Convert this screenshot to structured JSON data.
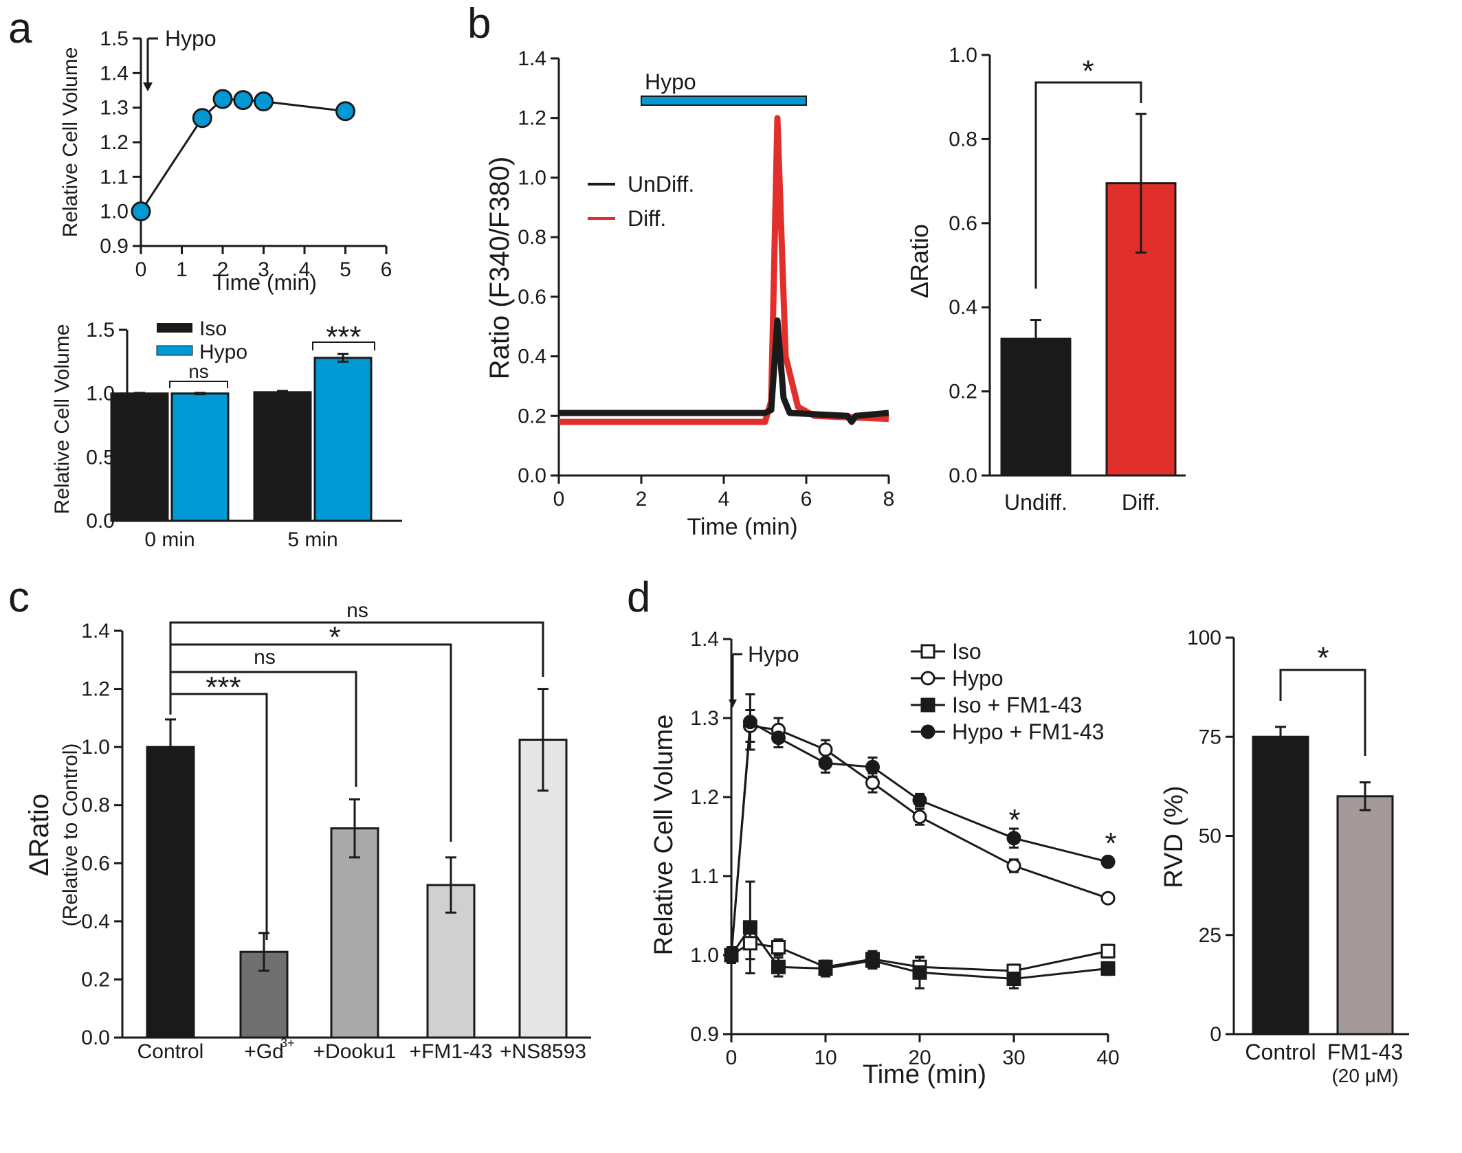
{
  "panels": {
    "a_letter": "a",
    "b_letter": "b",
    "c_letter": "c",
    "d_letter": "d"
  },
  "colors": {
    "black": "#1a1a1a",
    "blue": "#0099d4",
    "red": "#e1302b",
    "gd": "#707070",
    "dooku": "#a9a9a9",
    "fm": "#d0d0d0",
    "ns": "#e6e6e6",
    "fm_rvd": "#a39a99"
  },
  "chart_data": [
    {
      "id": "a_top",
      "type": "line",
      "xlabel": "Time (min)",
      "ylabel": "Relative Cell Volume",
      "xlim": [
        0,
        6
      ],
      "ylim": [
        0.9,
        1.5
      ],
      "xticks": [
        "0",
        "1",
        "2",
        "3",
        "4",
        "5",
        "6"
      ],
      "yticks": [
        "0.9",
        "1.0",
        "1.1",
        "1.2",
        "1.3",
        "1.4",
        "1.5"
      ],
      "annotation": "Hypo",
      "x": [
        0,
        1.5,
        2,
        2.5,
        3,
        5
      ],
      "y": [
        1.0,
        1.27,
        1.325,
        1.322,
        1.318,
        1.29
      ]
    },
    {
      "id": "a_bottom",
      "type": "bar",
      "ylabel": "Relative Cell Volume",
      "ylim": [
        0,
        1.5
      ],
      "yticks": [
        "0.0",
        "0.5",
        "1.0",
        "1.5"
      ],
      "categories": [
        "0 min",
        "5 min"
      ],
      "series": [
        {
          "name": "Iso",
          "values": [
            1.0,
            1.01
          ],
          "err": [
            0.005,
            0.01
          ]
        },
        {
          "name": "Hypo",
          "values": [
            1.0,
            1.28
          ],
          "err": [
            0.005,
            0.03
          ]
        }
      ],
      "significance": [
        "ns",
        "***"
      ]
    },
    {
      "id": "b_trace",
      "type": "line",
      "xlabel": "Time (min)",
      "ylabel": "Ratio (F340/F380)",
      "xlim": [
        0,
        8
      ],
      "ylim": [
        0,
        1.4
      ],
      "xticks": [
        "0",
        "2",
        "4",
        "6",
        "8"
      ],
      "yticks": [
        "0.0",
        "0.2",
        "0.4",
        "0.6",
        "0.8",
        "1.0",
        "1.2",
        "1.4"
      ],
      "annotation": "Hypo",
      "stimulus": [
        2,
        6
      ],
      "series": [
        {
          "name": "UnDiff.",
          "x": [
            0,
            5.0,
            5.15,
            5.3,
            5.45,
            5.6,
            7.0,
            7.1,
            7.2,
            8
          ],
          "y": [
            0.21,
            0.21,
            0.22,
            0.52,
            0.26,
            0.21,
            0.2,
            0.18,
            0.2,
            0.21
          ]
        },
        {
          "name": "Diff.",
          "x": [
            0,
            5.0,
            5.15,
            5.3,
            5.5,
            5.8,
            6.2,
            8
          ],
          "y": [
            0.18,
            0.18,
            0.25,
            1.2,
            0.4,
            0.23,
            0.2,
            0.19
          ]
        }
      ]
    },
    {
      "id": "b_bar",
      "type": "bar",
      "ylabel": "ΔRatio",
      "ylim": [
        0,
        1.0
      ],
      "yticks": [
        "0.0",
        "0.2",
        "0.4",
        "0.6",
        "0.8",
        "1.0"
      ],
      "categories": [
        "Undiff.",
        "Diff."
      ],
      "values": [
        0.325,
        0.695
      ],
      "err": [
        0.045,
        0.165
      ],
      "significance": "*"
    },
    {
      "id": "c_bar",
      "type": "bar",
      "ylabel": "ΔRatio",
      "ylabel2": "(Relative to Control)",
      "ylim": [
        0,
        1.4
      ],
      "yticks": [
        "0.0",
        "0.2",
        "0.4",
        "0.6",
        "0.8",
        "1.0",
        "1.2",
        "1.4"
      ],
      "categories": [
        "Control",
        "+Gd",
        "+Dooku1",
        "+FM1-43",
        "+NS8593"
      ],
      "superscript": "3+",
      "values": [
        1.0,
        0.295,
        0.72,
        0.525,
        1.025
      ],
      "err": [
        0.095,
        0.065,
        0.1,
        0.095,
        0.175
      ],
      "significance": [
        "***",
        "ns",
        "*",
        "ns"
      ]
    },
    {
      "id": "d_line",
      "type": "line",
      "xlabel": "Time (min)",
      "ylabel": "Relative Cell Volume",
      "xlim": [
        0,
        40
      ],
      "ylim": [
        0.9,
        1.4
      ],
      "xticks": [
        "0",
        "10",
        "20",
        "30",
        "40"
      ],
      "yticks": [
        "0.9",
        "1.0",
        "1.1",
        "1.2",
        "1.3",
        "1.4"
      ],
      "annotation": "Hypo",
      "x": [
        0,
        2,
        5,
        10,
        15,
        20,
        30,
        40
      ],
      "series": [
        {
          "name": "Iso",
          "legend": "Iso",
          "marker": "square-open",
          "y": [
            1.0,
            1.015,
            1.01,
            0.985,
            0.995,
            0.985,
            0.98,
            1.005
          ],
          "err": [
            0.01,
            0.02,
            0.01,
            0.008,
            0.01,
            0.012,
            0.008,
            0.008
          ]
        },
        {
          "name": "Hypo",
          "legend": "Hypo",
          "marker": "circle-open",
          "y": [
            1.0,
            1.29,
            1.285,
            1.26,
            1.218,
            1.175,
            1.113,
            1.072
          ],
          "err": [
            0.01,
            0.02,
            0.015,
            0.012,
            0.012,
            0.01,
            0.008,
            0.005
          ]
        },
        {
          "name": "Iso + FM1-43",
          "legend": "Iso + FM1-43",
          "marker": "square-filled",
          "y": [
            1.0,
            1.035,
            0.985,
            0.983,
            0.993,
            0.978,
            0.97,
            0.983
          ],
          "err": [
            0.01,
            0.058,
            0.012,
            0.01,
            0.01,
            0.02,
            0.012,
            0.008
          ]
        },
        {
          "name": "Hypo + FM1-43",
          "legend": "Hypo + FM1-43",
          "marker": "circle-filled",
          "y": [
            1.0,
            1.295,
            1.275,
            1.243,
            1.238,
            1.196,
            1.148,
            1.118
          ],
          "err": [
            0.01,
            0.035,
            0.012,
            0.012,
            0.012,
            0.008,
            0.012,
            0.005
          ]
        }
      ],
      "significance": [
        "*",
        "*"
      ]
    },
    {
      "id": "d_bar",
      "type": "bar",
      "ylabel": "RVD (%)",
      "ylim": [
        0,
        100
      ],
      "yticks": [
        "0",
        "25",
        "50",
        "75",
        "100"
      ],
      "categories": [
        "Control",
        "FM1-43"
      ],
      "category_sublabel": "(20 μM)",
      "values": [
        75,
        60
      ],
      "err": [
        2.5,
        3.5
      ],
      "significance": "*"
    }
  ]
}
